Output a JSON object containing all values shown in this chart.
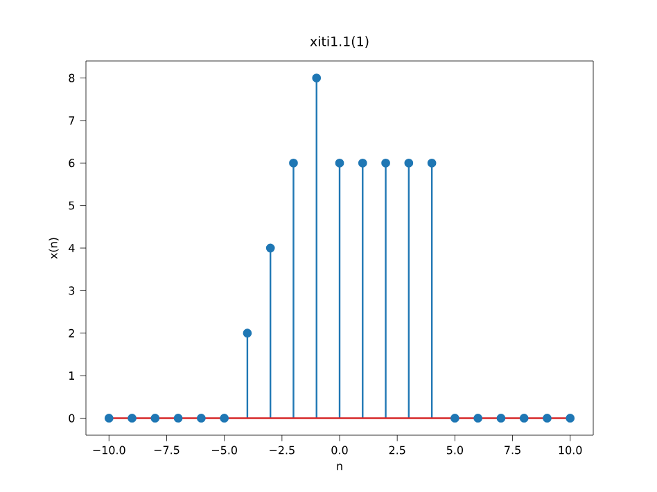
{
  "chart_data": {
    "type": "lollipop",
    "title": "xiti1.1(1)",
    "xlabel": "n",
    "ylabel": "x(n)",
    "x": [
      -10,
      -9,
      -8,
      -7,
      -6,
      -5,
      -4,
      -3,
      -2,
      -1,
      0,
      1,
      2,
      3,
      4,
      5,
      6,
      7,
      8,
      9,
      10
    ],
    "values": [
      0,
      0,
      0,
      0,
      0,
      0,
      2,
      4,
      6,
      8,
      6,
      6,
      6,
      6,
      6,
      0,
      0,
      0,
      0,
      0,
      0
    ],
    "color": "#1f77b4",
    "marker": "circle",
    "grid": false,
    "ref_lines": [
      {
        "axis": "y",
        "value": 0,
        "color": "#d62728"
      }
    ],
    "xlim": [
      -11,
      11
    ],
    "ylim": [
      -0.4,
      8.4
    ],
    "xticks": [
      {
        "value": -10,
        "label": "−10.0"
      },
      {
        "value": -7.5,
        "label": "−7.5"
      },
      {
        "value": -5,
        "label": "−5.0"
      },
      {
        "value": -2.5,
        "label": "−2.5"
      },
      {
        "value": 0,
        "label": "0.0"
      },
      {
        "value": 2.5,
        "label": "2.5"
      },
      {
        "value": 5,
        "label": "5.0"
      },
      {
        "value": 7.5,
        "label": "7.5"
      },
      {
        "value": 10,
        "label": "10.0"
      }
    ],
    "yticks": [
      0,
      1,
      2,
      3,
      4,
      5,
      6,
      7,
      8
    ]
  }
}
